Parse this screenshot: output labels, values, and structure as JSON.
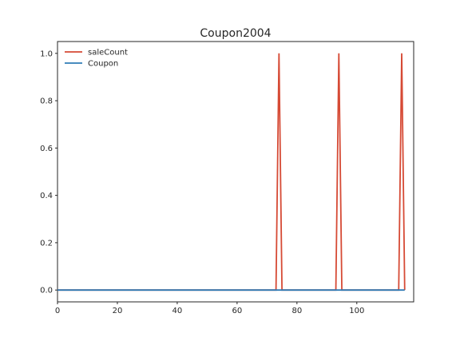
{
  "chart_data": {
    "type": "line",
    "title": "Coupon2004",
    "xlabel": "",
    "ylabel": "",
    "xlim": [
      0,
      119
    ],
    "ylim": [
      -0.05,
      1.05
    ],
    "xticks": [
      0,
      20,
      40,
      60,
      80,
      100
    ],
    "xtick_labels": [
      "0",
      "20",
      "40",
      "60",
      "80",
      "100"
    ],
    "yticks": [
      0.0,
      0.2,
      0.4,
      0.6,
      0.8,
      1.0
    ],
    "ytick_labels": [
      "0.0",
      "0.2",
      "0.4",
      "0.6",
      "0.8",
      "1.0"
    ],
    "grid": false,
    "legend_position": "top-left",
    "n_points": 117,
    "series": [
      {
        "name": "saleCount",
        "color": "#d64a35",
        "spikes": [
          {
            "x": 74,
            "y": 1
          },
          {
            "x": 94,
            "y": 1
          },
          {
            "x": 115,
            "y": 1
          }
        ],
        "baseline": 0
      },
      {
        "name": "Coupon",
        "color": "#2f7bb6",
        "spikes": [],
        "baseline": 0
      }
    ]
  }
}
